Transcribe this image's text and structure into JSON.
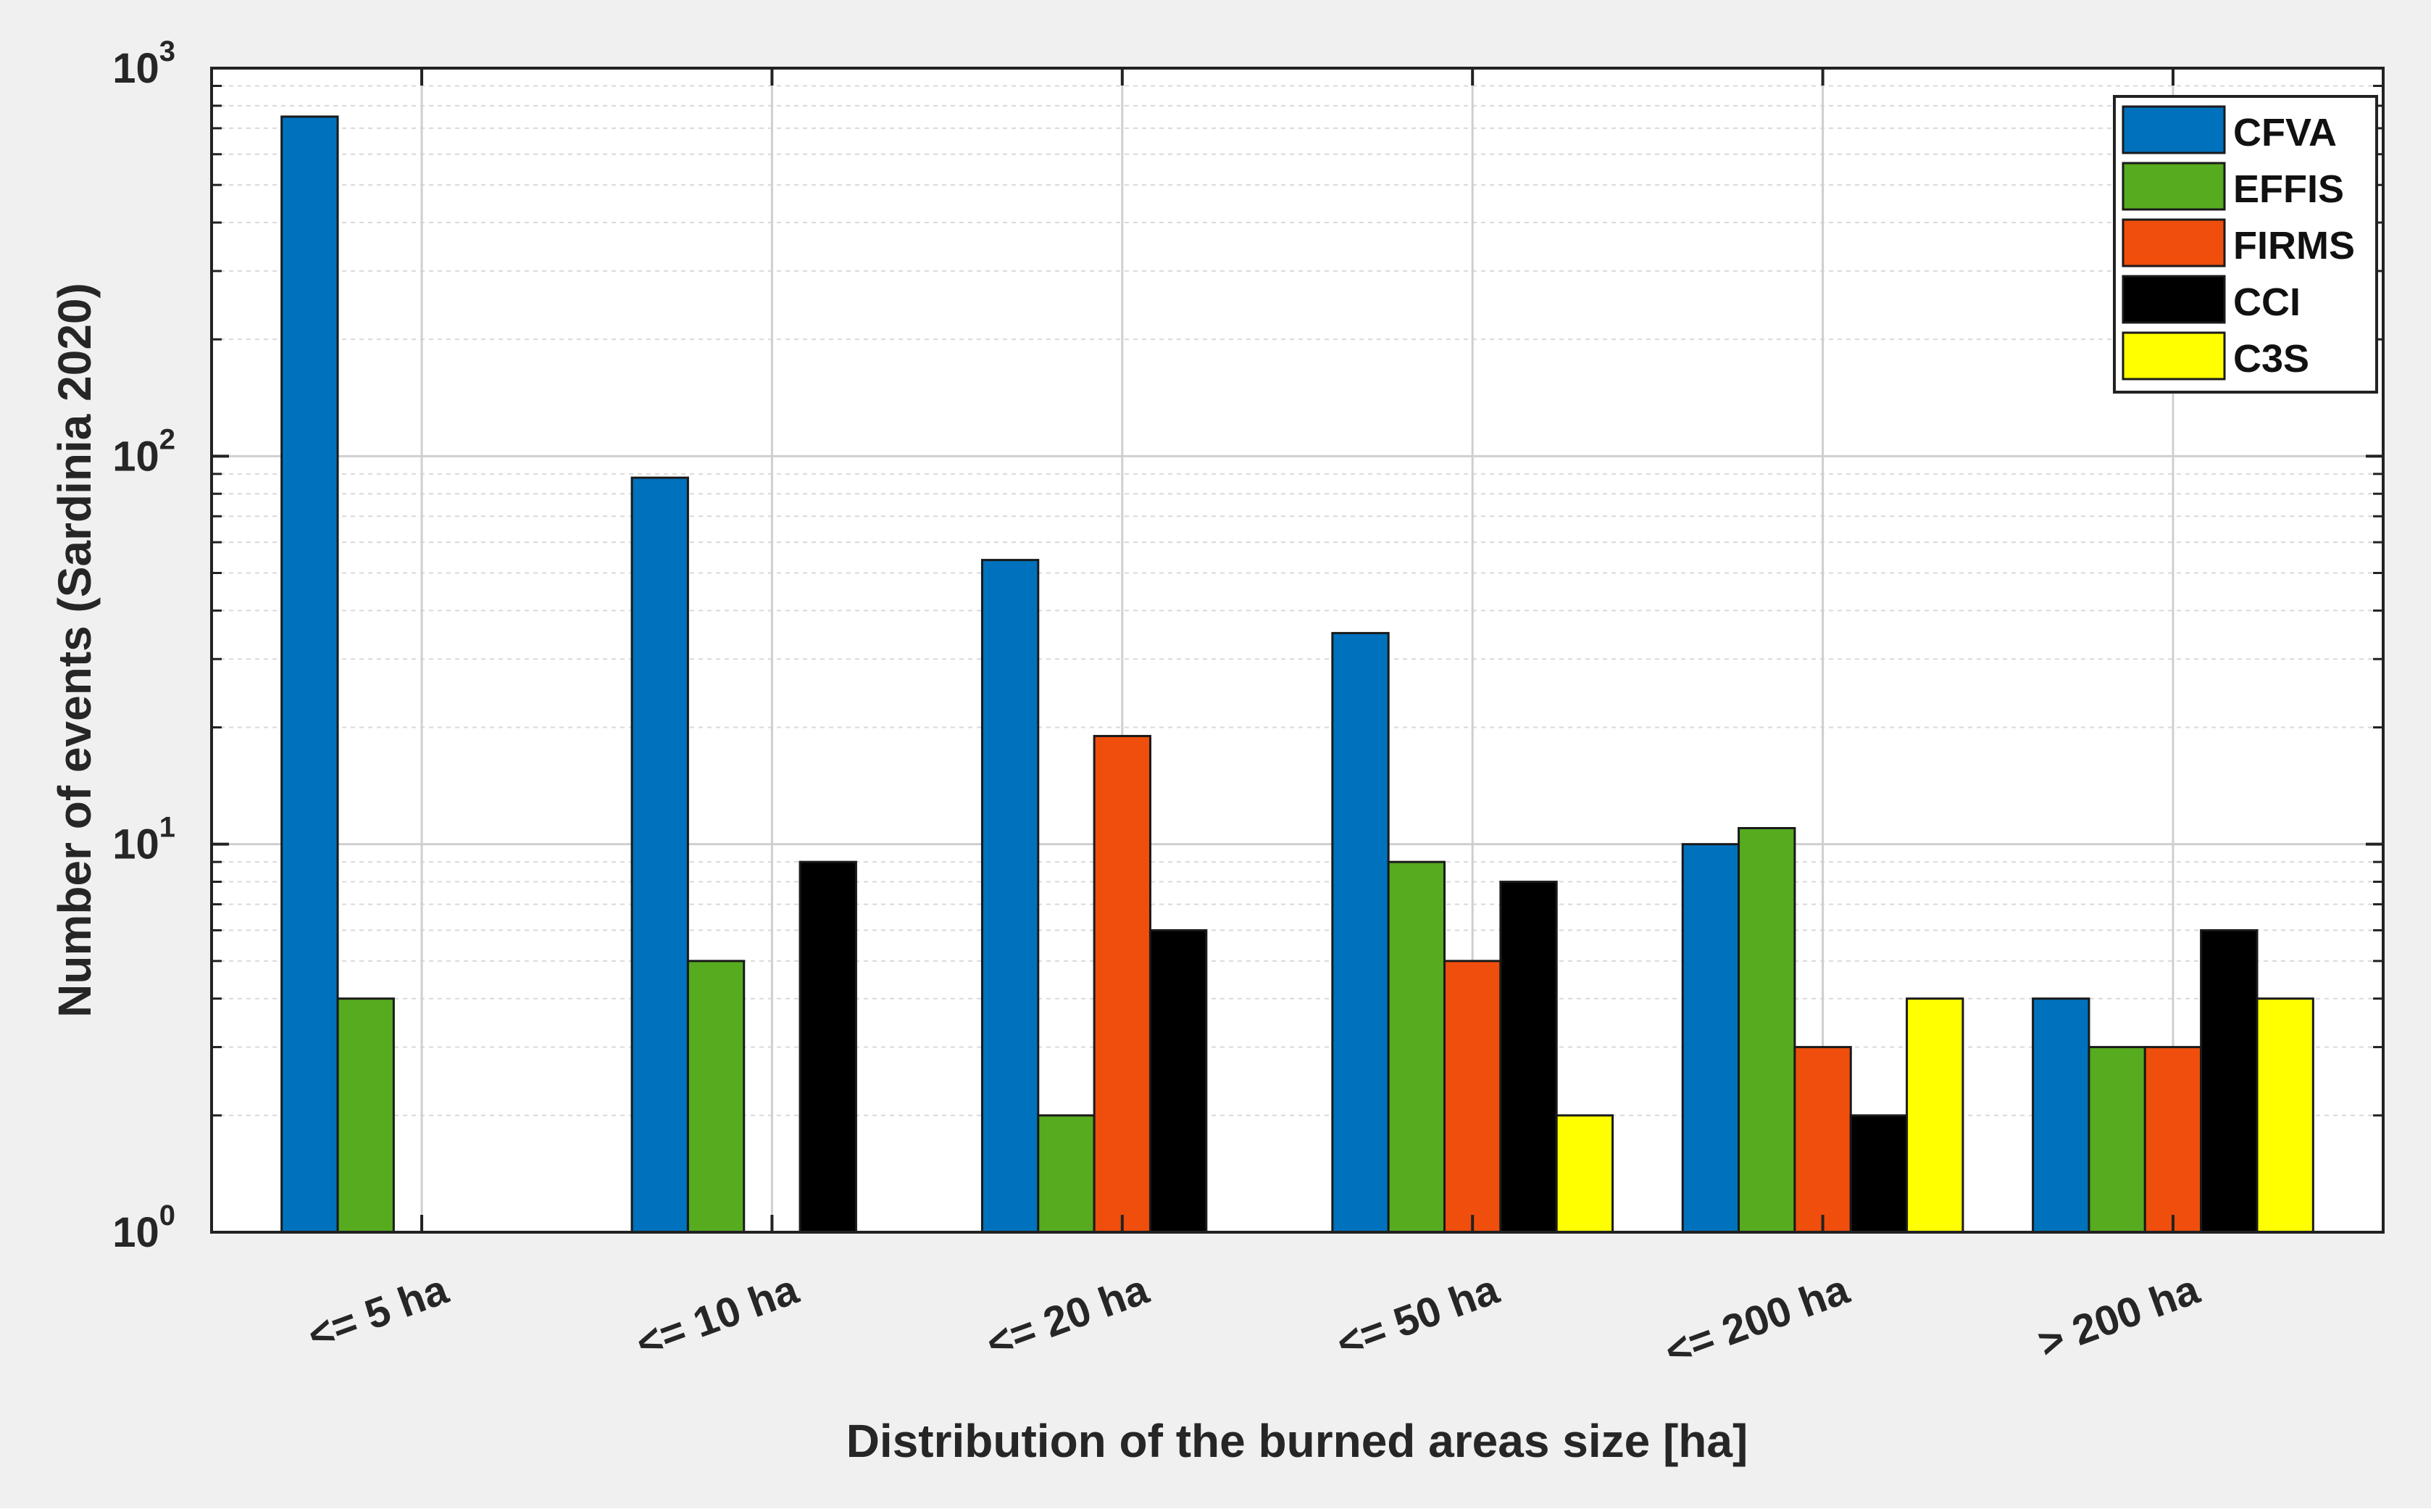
{
  "chart_data": {
    "type": "bar",
    "title": "",
    "xlabel": "Distribution of the burned areas size [ha]",
    "ylabel": "Number of events (Sardinia 2020)",
    "yscale": "log",
    "ylim": [
      1,
      1000
    ],
    "yticks": [
      {
        "base": "10",
        "exp": "0"
      },
      {
        "base": "10",
        "exp": "1"
      },
      {
        "base": "10",
        "exp": "2"
      },
      {
        "base": "10",
        "exp": "3"
      }
    ],
    "grid": true,
    "legend_position": "top-right",
    "categories": [
      "<= 5 ha",
      "<= 10 ha",
      "<= 20 ha",
      "<= 50 ha",
      "<= 200 ha",
      "> 200 ha"
    ],
    "series": [
      {
        "name": "CFVA",
        "color": "#0072bd",
        "values": [
          750,
          88,
          54,
          35,
          10,
          4
        ]
      },
      {
        "name": "EFFIS",
        "color": "#56ab1f",
        "values": [
          4,
          5,
          2,
          9,
          11,
          3
        ]
      },
      {
        "name": "FIRMS",
        "color": "#f04e0c",
        "values": [
          1,
          1,
          19,
          5,
          3,
          3
        ]
      },
      {
        "name": "CCI",
        "color": "#000000",
        "values": [
          1,
          9,
          6,
          8,
          2,
          6
        ]
      },
      {
        "name": "C3S",
        "color": "#ffff00",
        "values": [
          1,
          1,
          1,
          2,
          4,
          4
        ]
      }
    ]
  }
}
